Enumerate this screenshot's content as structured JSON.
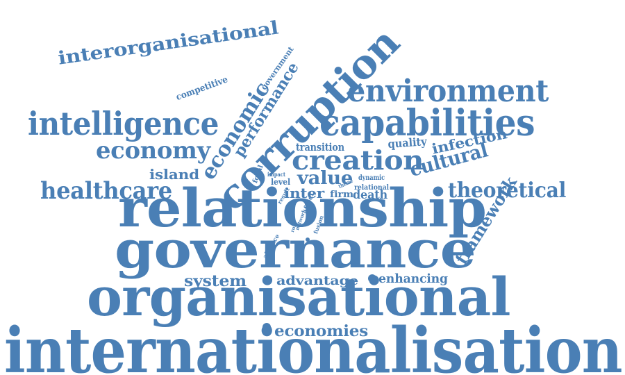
{
  "cloud": {
    "color": "#4a7fb5",
    "words": [
      "internationalisation",
      "organisational",
      "governance",
      "relationship",
      "corruption",
      "capabilities",
      "environment",
      "intelligence",
      "interorganisational",
      "economy",
      "economic",
      "performance",
      "creation",
      "healthcare",
      "theoretical",
      "cultural",
      "framework",
      "infection",
      "island",
      "value",
      "inter",
      "firm",
      "death",
      "system",
      "advantage",
      "enhancing",
      "economies",
      "transition",
      "quality",
      "competitive",
      "government",
      "impact",
      "level",
      "focal",
      "dynamic",
      "relational",
      "theme",
      "result",
      "affect",
      "alliance",
      "fusion",
      "network",
      "role"
    ]
  }
}
